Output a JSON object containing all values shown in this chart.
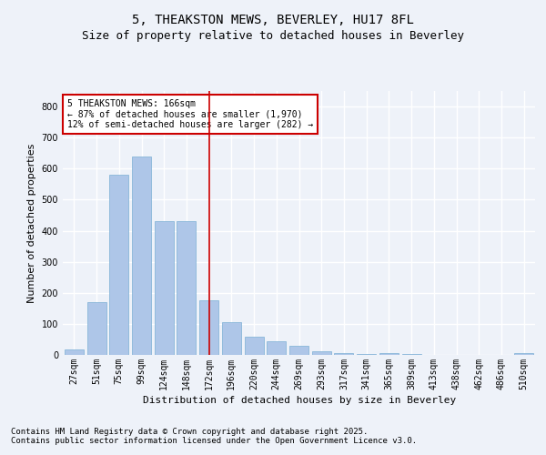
{
  "title_line1": "5, THEAKSTON MEWS, BEVERLEY, HU17 8FL",
  "title_line2": "Size of property relative to detached houses in Beverley",
  "xlabel": "Distribution of detached houses by size in Beverley",
  "ylabel": "Number of detached properties",
  "footer_line1": "Contains HM Land Registry data © Crown copyright and database right 2025.",
  "footer_line2": "Contains public sector information licensed under the Open Government Licence v3.0.",
  "categories": [
    "27sqm",
    "51sqm",
    "75sqm",
    "99sqm",
    "124sqm",
    "148sqm",
    "172sqm",
    "196sqm",
    "220sqm",
    "244sqm",
    "269sqm",
    "293sqm",
    "317sqm",
    "341sqm",
    "365sqm",
    "389sqm",
    "413sqm",
    "438sqm",
    "462sqm",
    "486sqm",
    "510sqm"
  ],
  "values": [
    18,
    170,
    580,
    640,
    430,
    430,
    175,
    105,
    58,
    45,
    30,
    12,
    5,
    2,
    6,
    3,
    1,
    0,
    0,
    0,
    5
  ],
  "bar_color": "#aec6e8",
  "bar_edge_color": "#7bafd4",
  "vline_index": 6,
  "vline_color": "#cc0000",
  "annotation_text": "5 THEAKSTON MEWS: 166sqm\n← 87% of detached houses are smaller (1,970)\n12% of semi-detached houses are larger (282) →",
  "annotation_box_edge": "#cc0000",
  "ylim": [
    0,
    850
  ],
  "yticks": [
    0,
    100,
    200,
    300,
    400,
    500,
    600,
    700,
    800
  ],
  "bg_color": "#eef2f9",
  "plot_bg_color": "#eef2f9",
  "grid_color": "#ffffff",
  "title_fontsize": 10,
  "subtitle_fontsize": 9,
  "tick_fontsize": 7,
  "ylabel_fontsize": 8,
  "xlabel_fontsize": 8,
  "footer_fontsize": 6.5,
  "ann_fontsize": 7
}
